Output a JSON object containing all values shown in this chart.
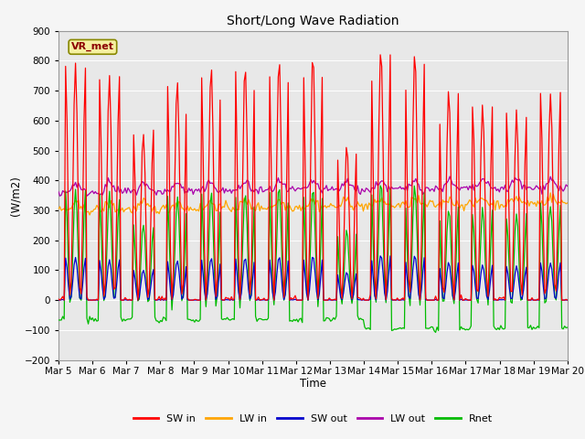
{
  "title": "Short/Long Wave Radiation",
  "xlabel": "Time",
  "ylabel": "(W/m2)",
  "ylim": [
    -200,
    900
  ],
  "xlim_days": [
    5,
    20
  ],
  "label_box": "VR_met",
  "tick_labels": [
    "Mar 5",
    "Mar 6",
    "Mar 7",
    "Mar 8",
    "Mar 9",
    "Mar 10",
    "Mar 11",
    "Mar 12",
    "Mar 13",
    "Mar 14",
    "Mar 15",
    "Mar 16",
    "Mar 17",
    "Mar 18",
    "Mar 19",
    "Mar 20"
  ],
  "yticks": [
    -200,
    -100,
    0,
    100,
    200,
    300,
    400,
    500,
    600,
    700,
    800,
    900
  ],
  "colors": {
    "SW_in": "#ff0000",
    "LW_in": "#ffa500",
    "SW_out": "#0000cc",
    "LW_out": "#aa00aa",
    "Rnet": "#00bb00"
  },
  "legend_labels": [
    "SW in",
    "LW in",
    "SW out",
    "LW out",
    "Rnet"
  ],
  "plot_bg_color": "#e8e8e8",
  "fig_bg_color": "#f5f5f5",
  "vr_met_text_color": "#8b0000",
  "vr_met_box_color": "#f5f0a0",
  "vr_met_edge_color": "#888800"
}
